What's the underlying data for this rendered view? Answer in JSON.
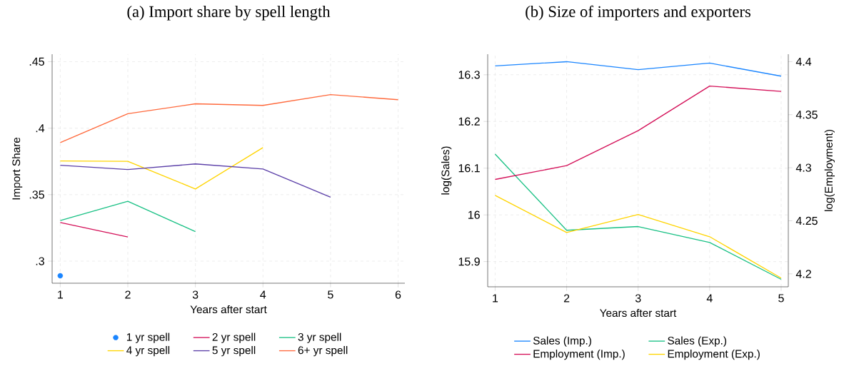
{
  "chart_data": [
    {
      "type": "line",
      "title": "(a) Import share by spell length",
      "xlabel": "Years after start",
      "ylabel": "Import Share",
      "xlim": [
        0.88,
        6.1
      ],
      "xticks": [
        1,
        2,
        3,
        4,
        5,
        6
      ],
      "ylim": [
        0.2834,
        0.4556
      ],
      "yticks": [
        {
          "value": 0.3,
          "label": ".3"
        },
        {
          "value": 0.35,
          "label": ".35"
        },
        {
          "value": 0.4,
          "label": ".4"
        },
        {
          "value": 0.45,
          "label": ".45"
        }
      ],
      "grid": true,
      "legend": "bottom",
      "series": [
        {
          "name": "1 yr spell",
          "type": "scatter",
          "marker": "circle",
          "color": "#1a85ff",
          "x": [
            1
          ],
          "values": [
            0.289
          ]
        },
        {
          "name": "2 yr spell",
          "color": "#d41159",
          "x": [
            1,
            2
          ],
          "values": [
            0.3291,
            0.3182
          ]
        },
        {
          "name": "3 yr spell",
          "color": "#1ac185",
          "x": [
            1,
            2,
            3
          ],
          "values": [
            0.3305,
            0.345,
            0.3222
          ]
        },
        {
          "name": "4 yr spell",
          "color": "#ffd400",
          "x": [
            1,
            2,
            3,
            4
          ],
          "values": [
            0.3753,
            0.3751,
            0.3543,
            0.3854
          ]
        },
        {
          "name": "5 yr spell",
          "color": "#5b3fa8",
          "x": [
            1,
            2,
            3,
            4,
            5
          ],
          "values": [
            0.3721,
            0.3689,
            0.3731,
            0.3693,
            0.3481
          ]
        },
        {
          "name": "6+ yr spell",
          "color": "#ff6a3d",
          "x": [
            1,
            2,
            3,
            4,
            5,
            6
          ],
          "values": [
            0.3891,
            0.4109,
            0.4183,
            0.4171,
            0.4252,
            0.4214
          ]
        }
      ]
    },
    {
      "type": "line",
      "title": "(b) Size of importers and exporters",
      "xlabel": "Years after start",
      "ylabel": "log(Sales)",
      "y2label": "log(Employment)",
      "xlim": [
        0.896,
        5.1
      ],
      "xticks": [
        1,
        2,
        3,
        4,
        5
      ],
      "ylim": [
        15.846,
        16.344
      ],
      "yticks": [
        15.9,
        16,
        16.1,
        16.2,
        16.3
      ],
      "y2lim": [
        4.1878,
        4.407
      ],
      "y2ticks": [
        4.2,
        4.25,
        4.3,
        4.35,
        4.4
      ],
      "grid": true,
      "legend": "bottom",
      "series": [
        {
          "name": "Sales (Imp.)",
          "color": "#1a85ff",
          "x": [
            1,
            2,
            3,
            4,
            5
          ],
          "values": [
            16.319,
            16.328,
            16.311,
            16.325,
            16.297
          ]
        },
        {
          "name": "Sales (Exp.)",
          "color": "#1ac185",
          "x": [
            1,
            2,
            3,
            4,
            5
          ],
          "values": [
            16.13,
            15.967,
            15.975,
            15.941,
            15.862
          ]
        },
        {
          "name": "Employment (Imp.)",
          "axis": "y2",
          "color": "#d41159",
          "x": [
            1,
            2,
            3,
            4,
            5
          ],
          "values": [
            4.289,
            4.302,
            4.335,
            4.377,
            4.372
          ]
        },
        {
          "name": "Employment (Exp.)",
          "axis": "y2",
          "color": "#ffd400",
          "x": [
            1,
            2,
            3,
            4,
            5
          ],
          "values": [
            4.274,
            4.239,
            4.256,
            4.235,
            4.196
          ]
        }
      ]
    }
  ]
}
